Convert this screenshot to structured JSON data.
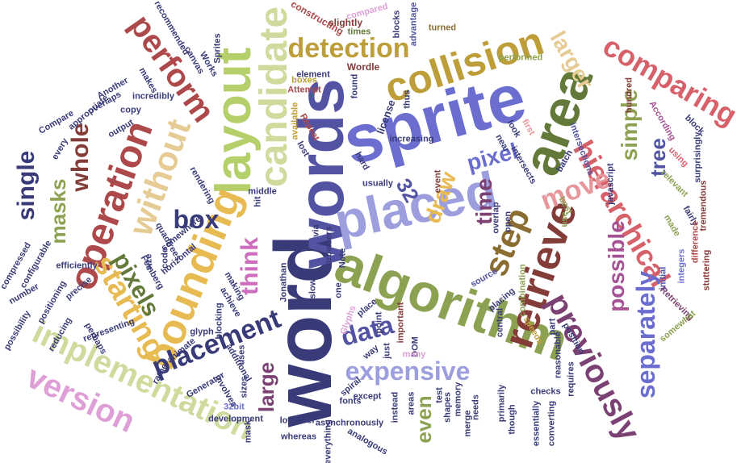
{
  "cloud": {
    "words": [
      {
        "text": "word",
        "color": "#393b79"
      },
      {
        "text": "words",
        "color": "#5254a3"
      },
      {
        "text": "sprite",
        "color": "#6b6ecf"
      },
      {
        "text": "placed",
        "color": "#9c9ede"
      },
      {
        "text": "algorithm",
        "color": "#8ca252"
      },
      {
        "text": "layout",
        "color": "#b5cf6b"
      },
      {
        "text": "candidate",
        "color": "#cedb9c"
      },
      {
        "text": "collision",
        "color": "#bd9e39"
      },
      {
        "text": "area",
        "color": "#637939"
      },
      {
        "text": "detection",
        "color": "#bd9e39"
      },
      {
        "text": "bounding",
        "color": "#e7ba52"
      },
      {
        "text": "operation",
        "color": "#ad494a"
      },
      {
        "text": "retrieve",
        "color": "#843c39"
      },
      {
        "text": "comparing",
        "color": "#d6616b"
      },
      {
        "text": "perform",
        "color": "#ad494a"
      },
      {
        "text": "without",
        "color": "#e7cb94"
      },
      {
        "text": "hierarchical",
        "color": "#d6616b"
      },
      {
        "text": "implementation",
        "color": "#cedb9c"
      },
      {
        "text": "version",
        "color": "#de9ed6"
      },
      {
        "text": "placement",
        "color": "#393b79"
      },
      {
        "text": "expensive",
        "color": "#9c9ede"
      },
      {
        "text": "previously",
        "color": "#7b4173"
      },
      {
        "text": "step",
        "color": "#8c6d31"
      },
      {
        "text": "starting",
        "color": "#e7ba52"
      },
      {
        "text": "move",
        "color": "#e7969c"
      },
      {
        "text": "pixels",
        "color": "#637939"
      },
      {
        "text": "separately",
        "color": "#6b6ecf"
      },
      {
        "text": "possible",
        "color": "#a55194"
      },
      {
        "text": "simple",
        "color": "#8ca252"
      },
      {
        "text": "tree",
        "color": "#5254a3"
      },
      {
        "text": "larger",
        "color": "#e7cb94"
      },
      {
        "text": "whole",
        "color": "#843c39"
      },
      {
        "text": "single",
        "color": "#393b79"
      },
      {
        "text": "masks",
        "color": "#8ca252"
      },
      {
        "text": "box",
        "color": "#393b79"
      },
      {
        "text": "think",
        "color": "#ce6dbd"
      },
      {
        "text": "large",
        "color": "#7b4173"
      },
      {
        "text": "data",
        "color": "#5254a3"
      },
      {
        "text": "time",
        "color": "#7b4173"
      },
      {
        "text": "draw",
        "color": "#e7ba52"
      },
      {
        "text": "pixel",
        "color": "#6b6ecf"
      },
      {
        "text": "32",
        "color": "#5254a3"
      },
      {
        "text": "even",
        "color": "#8ca252"
      },
      {
        "text": "license",
        "color": "#393b79"
      },
      {
        "text": "constructing",
        "color": "#ad494a"
      },
      {
        "text": "slightly",
        "color": "#843c39"
      },
      {
        "text": "compared",
        "color": "#de9ed6"
      },
      {
        "text": "blocks",
        "color": "#393b79"
      },
      {
        "text": "advantage",
        "color": "#5254a3"
      },
      {
        "text": "turned",
        "color": "#8c6d31"
      },
      {
        "text": "times",
        "color": "#637939"
      },
      {
        "text": "increasing",
        "color": "#393b79"
      },
      {
        "text": "Wordle",
        "color": "#843c39"
      },
      {
        "text": "element",
        "color": "#393b79"
      },
      {
        "text": "boxes",
        "color": "#bd9e39"
      },
      {
        "text": "found",
        "color": "#393b79"
      },
      {
        "text": "Attempt",
        "color": "#ad494a"
      },
      {
        "text": "available",
        "color": "#bd9e39"
      },
      {
        "text": "Repeat",
        "color": "#ad494a"
      },
      {
        "text": "lost",
        "color": "#393b79"
      },
      {
        "text": "usually",
        "color": "#393b79"
      },
      {
        "text": "event",
        "color": "#843c39"
      },
      {
        "text": "hundred",
        "color": "#843c39"
      },
      {
        "text": "According",
        "color": "#a55194"
      },
      {
        "text": "block",
        "color": "#393b79"
      },
      {
        "text": "using",
        "color": "#d6616b"
      },
      {
        "text": "surprisingly",
        "color": "#393b79"
      },
      {
        "text": "relevant",
        "color": "#8ca252"
      },
      {
        "text": "tremendous",
        "color": "#843c39"
      },
      {
        "text": "fairly",
        "color": "#393b79"
      },
      {
        "text": "made",
        "color": "#8ca252"
      },
      {
        "text": "difference",
        "color": "#ad494a"
      },
      {
        "text": "initial",
        "color": "#5254a3"
      },
      {
        "text": "integers",
        "color": "#6b6ecf"
      },
      {
        "text": "stuttering",
        "color": "#843c39"
      },
      {
        "text": "Retrieving",
        "color": "#7b4173"
      },
      {
        "text": "somewhat",
        "color": "#8ca252"
      },
      {
        "text": "javascript",
        "color": "#393b79"
      },
      {
        "text": "intersections",
        "color": "#5254a3"
      },
      {
        "text": "batch",
        "color": "#393b79"
      },
      {
        "text": "best",
        "color": "#8ca252"
      },
      {
        "text": "use",
        "color": "#8ca252"
      },
      {
        "text": "overlap",
        "color": "#393b79"
      },
      {
        "text": "open",
        "color": "#393b79"
      },
      {
        "text": "first",
        "color": "#e7969c"
      },
      {
        "text": "intersects",
        "color": "#393b79"
      },
      {
        "text": "near",
        "color": "#393b79"
      },
      {
        "text": "look",
        "color": "#393b79"
      },
      {
        "text": "source",
        "color": "#5254a3"
      },
      {
        "text": "Glyphs",
        "color": "#de9ed6"
      },
      {
        "text": "slow",
        "color": "#393b79"
      },
      {
        "text": "one",
        "color": "#393b79"
      },
      {
        "text": "placing",
        "color": "#393b79"
      },
      {
        "text": "combination",
        "color": "#8ca252"
      },
      {
        "text": "central",
        "color": "#393b79"
      },
      {
        "text": "important",
        "color": "#843c39"
      },
      {
        "text": "point",
        "color": "#393b79"
      },
      {
        "text": "place",
        "color": "#393b79"
      },
      {
        "text": "DOM",
        "color": "#393b79"
      },
      {
        "text": "just",
        "color": "#393b79"
      },
      {
        "text": "way",
        "color": "#393b79"
      },
      {
        "text": "many",
        "color": "#de9ed6"
      },
      {
        "text": "speeds",
        "color": "#bd9e39"
      },
      {
        "text": "part",
        "color": "#393b79"
      },
      {
        "text": "position",
        "color": "#393b79"
      },
      {
        "text": "reasonable",
        "color": "#393b79"
      },
      {
        "text": "requires",
        "color": "#393b79"
      },
      {
        "text": "checks",
        "color": "#393b79"
      },
      {
        "text": "primarily",
        "color": "#393b79"
      },
      {
        "text": "though",
        "color": "#393b79"
      },
      {
        "text": "essentially",
        "color": "#393b79"
      },
      {
        "text": "converting",
        "color": "#393b79"
      },
      {
        "text": "shapes",
        "color": "#393b79"
      },
      {
        "text": "test",
        "color": "#393b79"
      },
      {
        "text": "memory",
        "color": "#393b79"
      },
      {
        "text": "merge",
        "color": "#393b79"
      },
      {
        "text": "needs",
        "color": "#393b79"
      },
      {
        "text": "areas",
        "color": "#393b79"
      },
      {
        "text": "instead",
        "color": "#393b79"
      },
      {
        "text": "except",
        "color": "#393b79"
      },
      {
        "text": "fonts",
        "color": "#393b79"
      },
      {
        "text": "spiral",
        "color": "#393b79"
      },
      {
        "text": "analogous",
        "color": "#393b79"
      },
      {
        "text": "asynchronously",
        "color": "#393b79"
      },
      {
        "text": "whereas",
        "color": "#393b79"
      },
      {
        "text": "lowlevel",
        "color": "#393b79"
      },
      {
        "text": "everything",
        "color": "#393b79"
      },
      {
        "text": "development",
        "color": "#393b79"
      },
      {
        "text": "32bit",
        "color": "#6b6ecf"
      },
      {
        "text": "Generator",
        "color": "#393b79"
      },
      {
        "text": "sizes",
        "color": "#393b79"
      },
      {
        "text": "involves",
        "color": "#393b79"
      },
      {
        "text": "additional",
        "color": "#393b79"
      },
      {
        "text": "uses",
        "color": "#393b79"
      },
      {
        "text": "animate",
        "color": "#393b79"
      },
      {
        "text": "glyph",
        "color": "#393b79"
      },
      {
        "text": "blocking",
        "color": "#393b79"
      },
      {
        "text": "making",
        "color": "#393b79"
      },
      {
        "text": "achieve",
        "color": "#393b79"
      },
      {
        "text": "rather",
        "color": "#393b79"
      },
      {
        "text": "mask",
        "color": "#393b79"
      },
      {
        "text": "precise",
        "color": "#393b79"
      },
      {
        "text": "efficiently",
        "color": "#393b79"
      },
      {
        "text": "compressed",
        "color": "#393b79"
      },
      {
        "text": "configurable",
        "color": "#393b79"
      },
      {
        "text": "number",
        "color": "#393b79"
      },
      {
        "text": "positioning",
        "color": "#393b79"
      },
      {
        "text": "possibility",
        "color": "#393b79"
      },
      {
        "text": "reducing",
        "color": "#393b79"
      },
      {
        "text": "representing",
        "color": "#393b79"
      },
      {
        "text": "perhaps",
        "color": "#393b79"
      },
      {
        "text": "horizontal",
        "color": "#393b79"
      },
      {
        "text": "quadtrees",
        "color": "#393b79"
      },
      {
        "text": "Feinberg",
        "color": "#393b79"
      },
      {
        "text": "code",
        "color": "#393b79"
      },
      {
        "text": "somewhere",
        "color": "#393b79"
      },
      {
        "text": "rendering",
        "color": "#393b79"
      },
      {
        "text": "Compare",
        "color": "#393b79"
      },
      {
        "text": "every",
        "color": "#393b79"
      },
      {
        "text": "appropriate",
        "color": "#393b79"
      },
      {
        "text": "output",
        "color": "#393b79"
      },
      {
        "text": "copy",
        "color": "#393b79"
      },
      {
        "text": "overlaps",
        "color": "#393b79"
      },
      {
        "text": "incredibly",
        "color": "#393b79"
      },
      {
        "text": "Another",
        "color": "#393b79"
      },
      {
        "text": "makes",
        "color": "#393b79"
      },
      {
        "text": "canvas",
        "color": "#393b79"
      },
      {
        "text": "Works",
        "color": "#393b79"
      },
      {
        "text": "Sprites",
        "color": "#393b79"
      },
      {
        "text": "recommended",
        "color": "#393b79"
      },
      {
        "text": "Jonathan",
        "color": "#393b79"
      },
      {
        "text": "Note",
        "color": "#393b79"
      },
      {
        "text": "browsers",
        "color": "#393b79"
      },
      {
        "text": "via",
        "color": "#393b79"
      },
      {
        "text": "middle",
        "color": "#393b79"
      },
      {
        "text": "hit",
        "color": "#393b79"
      },
      {
        "text": "performed",
        "color": "#8ca252"
      },
      {
        "text": "thus",
        "color": "#393b79"
      },
      {
        "text": "hard",
        "color": "#393b79"
      },
      {
        "text": "size",
        "color": "#393b79"
      }
    ]
  }
}
